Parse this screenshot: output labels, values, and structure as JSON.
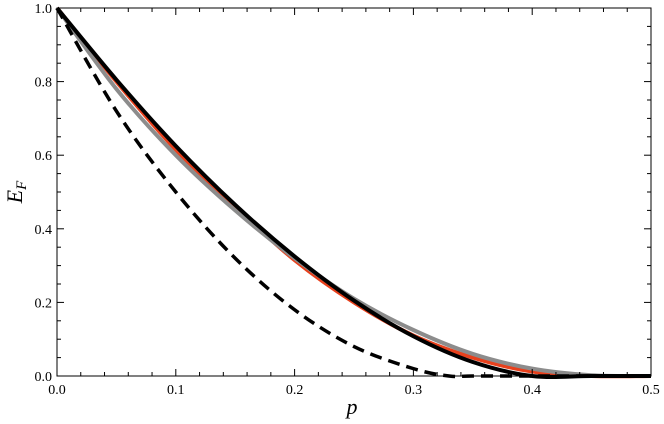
{
  "chart_data": {
    "type": "line",
    "title": "",
    "xlabel": "p",
    "ylabel": {
      "main": "E",
      "sub": "F"
    },
    "xlim": [
      0,
      0.5
    ],
    "ylim": [
      0,
      1.0
    ],
    "grid": false,
    "x_ticks": [
      "0.0",
      "0.1",
      "0.2",
      "0.3",
      "0.4",
      "0.5"
    ],
    "y_ticks": [
      "0.0",
      "0.2",
      "0.4",
      "0.6",
      "0.8",
      "1.0"
    ],
    "series": [
      {
        "color": "#e8401c",
        "dash": "solid",
        "x": [
          0,
          0.05,
          0.1,
          0.15,
          0.2,
          0.25,
          0.3,
          0.35,
          0.4,
          0.45,
          0.5
        ],
        "y": [
          1.0,
          0.8,
          0.615,
          0.46,
          0.315,
          0.2,
          0.11,
          0.05,
          0.012,
          0.0,
          0.0
        ]
      },
      {
        "color": "#8c8c8c",
        "dash": "solid",
        "x": [
          0,
          0.05,
          0.1,
          0.15,
          0.2,
          0.25,
          0.3,
          0.35,
          0.4,
          0.45,
          0.5
        ],
        "y": [
          1.0,
          0.78,
          0.6,
          0.45,
          0.32,
          0.21,
          0.125,
          0.06,
          0.02,
          0.002,
          0.0
        ]
      },
      {
        "color": "#000000",
        "dash": "solid",
        "x": [
          0,
          0.05,
          0.1,
          0.15,
          0.2,
          0.25,
          0.3,
          0.35,
          0.4,
          0.45,
          0.5
        ],
        "y": [
          1.0,
          0.805,
          0.625,
          0.465,
          0.325,
          0.205,
          0.108,
          0.038,
          0.0,
          0.0,
          0.0
        ]
      },
      {
        "color": "#000000",
        "dash": "dashed",
        "x": [
          0,
          0.05,
          0.1,
          0.15,
          0.2,
          0.25,
          0.3,
          0.33,
          0.35,
          0.4,
          0.45,
          0.5
        ],
        "y": [
          1.0,
          0.72,
          0.5,
          0.32,
          0.18,
          0.08,
          0.02,
          0.0,
          0.0,
          0.0,
          0.0,
          0.0
        ]
      }
    ]
  }
}
